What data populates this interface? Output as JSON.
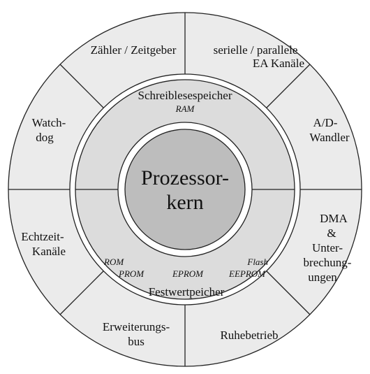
{
  "diagram": {
    "core": {
      "line1": "Prozessor-",
      "line2": "kern"
    },
    "memory_ring": {
      "ram": {
        "title": "Schreiblesespeicher",
        "subtitle": "RAM"
      },
      "rom": {
        "title": "Festwertpeicher",
        "types": [
          "ROM",
          "PROM",
          "EPROM",
          "Flash",
          "EEPROM"
        ]
      }
    },
    "peripherals": [
      {
        "lines": [
          "Zähler / Zeitgeber"
        ]
      },
      {
        "lines": [
          "serielle / parallele",
          "EA Kanäle"
        ]
      },
      {
        "lines": [
          "A/D-",
          "Wandler"
        ]
      },
      {
        "lines": [
          "DMA",
          "&",
          "Unter-",
          "brechung-",
          "ungen"
        ]
      },
      {
        "lines": [
          "Ruhebetrieb"
        ]
      },
      {
        "lines": [
          "Erweiterungs-",
          "bus"
        ]
      },
      {
        "lines": [
          "Echtzeit-",
          "Kanäle"
        ]
      },
      {
        "lines": [
          "Watch-",
          "dog"
        ]
      }
    ],
    "colors": {
      "outer_ring": "#ebebeb",
      "memory_ring": "#dcdcdc",
      "core": "#bdbdbd",
      "gap": "#ffffff",
      "stroke": "#222222"
    }
  }
}
